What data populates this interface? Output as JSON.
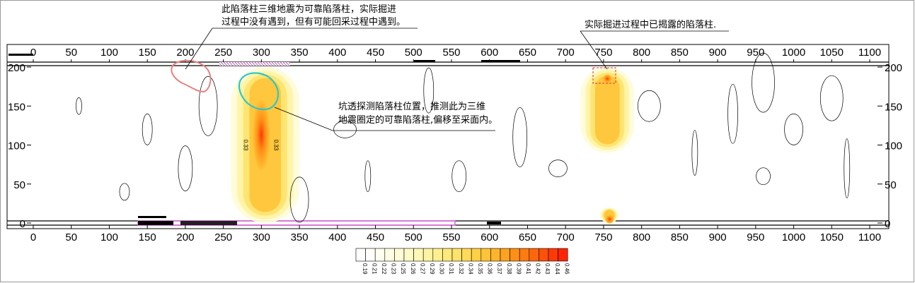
{
  "chart_data": {
    "type": "heatmap",
    "title": "",
    "xlabel": "",
    "ylabel": "",
    "xlim": [
      0,
      1100
    ],
    "ylim": [
      0,
      200
    ],
    "x_ticks_top": [
      "0",
      "50",
      "100",
      "150",
      "200",
      "250",
      "300",
      "350",
      "400",
      "450",
      "500",
      "550",
      "600",
      "650",
      "700",
      "750",
      "800",
      "850",
      "900",
      "950",
      "1000",
      "1050",
      "1100"
    ],
    "x_ticks_bottom": [
      "0",
      "50",
      "100",
      "150",
      "200",
      "250",
      "300",
      "350",
      "400",
      "450",
      "500",
      "550",
      "600",
      "650",
      "700",
      "750",
      "800",
      "850",
      "900",
      "950",
      "1000",
      "1050",
      "1100"
    ],
    "y_ticks_left": [
      "0",
      "50",
      "100",
      "150",
      "200"
    ],
    "y_ticks_right": [
      "0",
      "50",
      "100",
      "150",
      "200"
    ],
    "contour_labels": [
      {
        "text": "0.33",
        "x": 277,
        "y": 100
      },
      {
        "text": "0.33",
        "x": 317,
        "y": 100
      }
    ],
    "anomalies": [
      {
        "x_range": [
          260,
          350
        ],
        "y_range": [
          0,
          200
        ],
        "peak": 0.46,
        "peak_x": 300,
        "peak_y": 140
      },
      {
        "x_range": [
          720,
          790
        ],
        "y_range": [
          90,
          200
        ],
        "peak": 0.4,
        "peak_x": 755,
        "peak_y": 185
      },
      {
        "x_range": [
          745,
          770
        ],
        "y_range": [
          0,
          20
        ],
        "peak": 0.4,
        "peak_x": 758,
        "peak_y": 5
      }
    ],
    "colorbar": {
      "values": [
        "0.19",
        "0.21",
        "0.22",
        "0.23",
        "0.25",
        "0.26",
        "0.27",
        "0.29",
        "0.30",
        "0.31",
        "0.32",
        "0.34",
        "0.35",
        "0.36",
        "0.37",
        "0.38",
        "0.39",
        "0.41",
        "0.42",
        "0.43",
        "0.44",
        "0.46"
      ],
      "colors": [
        "#ffffff",
        "#fffffb",
        "#fffff0",
        "#fffde4",
        "#fffcd6",
        "#fffac6",
        "#fff7b4",
        "#fff3a2",
        "#ffef8f",
        "#ffe97c",
        "#ffe26a",
        "#ffda58",
        "#ffd046",
        "#ffc337",
        "#ffb42a",
        "#ffa21f",
        "#ff8f16",
        "#ff7b10",
        "#ff660b",
        "#ff5008",
        "#ff3a05",
        "#ff2402"
      ]
    },
    "markers": [
      {
        "type": "circle",
        "color": "#e98080",
        "x": 205,
        "y": 180
      },
      {
        "type": "circle",
        "color": "#28c8c8",
        "x": 300,
        "y": 165
      },
      {
        "type": "box",
        "color": "#e03030",
        "x": 755,
        "y": 185
      }
    ]
  },
  "annotations": {
    "a1_line1": "此陷落柱三维地震为可靠陷落柱，实际掘进",
    "a1_line2": "过程中没有遇到，但有可能回采过程中遇到。",
    "a2": "实际掘进过程中已揭露的陷落柱.",
    "a3_line1": "坑透探测陷落柱位置，推测此为三维",
    "a3_line2": "地震圈定的可靠陷落柱,偏移至采面内。"
  },
  "colors": {
    "pink_roadway": "#e060e0",
    "frame": "#9a9a9a",
    "contour": "#000000"
  }
}
